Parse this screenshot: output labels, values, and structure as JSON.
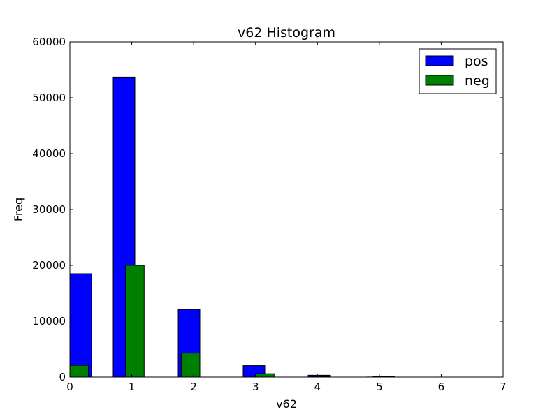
{
  "chart_data": {
    "type": "bar",
    "title": "v62 Histogram",
    "xlabel": "v62",
    "ylabel": "Freq",
    "xlim": [
      0,
      7
    ],
    "ylim": [
      0,
      60000
    ],
    "x_ticks": [
      0,
      1,
      2,
      3,
      4,
      5,
      6,
      7
    ],
    "y_ticks": [
      0,
      10000,
      20000,
      30000,
      40000,
      50000,
      60000
    ],
    "grid": false,
    "legend_position": "top-right",
    "series": [
      {
        "name": "pos",
        "color": "#0000ff",
        "bins": [
          {
            "x0": 0.0,
            "x1": 0.35,
            "value": 18500
          },
          {
            "x0": 0.7,
            "x1": 1.05,
            "value": 53700
          },
          {
            "x0": 1.75,
            "x1": 2.1,
            "value": 12100
          },
          {
            "x0": 2.8,
            "x1": 3.15,
            "value": 2050
          },
          {
            "x0": 3.85,
            "x1": 4.2,
            "value": 330
          },
          {
            "x0": 4.9,
            "x1": 5.25,
            "value": 60
          }
        ]
      },
      {
        "name": "neg",
        "color": "#008000",
        "bins": [
          {
            "x0": 0.0,
            "x1": 0.3,
            "value": 2100
          },
          {
            "x0": 0.9,
            "x1": 1.2,
            "value": 20000
          },
          {
            "x0": 1.8,
            "x1": 2.1,
            "value": 4300
          },
          {
            "x0": 3.0,
            "x1": 3.3,
            "value": 600
          },
          {
            "x0": 3.9,
            "x1": 4.2,
            "value": 80
          },
          {
            "x0": 4.8,
            "x1": 5.1,
            "value": 15
          }
        ]
      }
    ]
  }
}
